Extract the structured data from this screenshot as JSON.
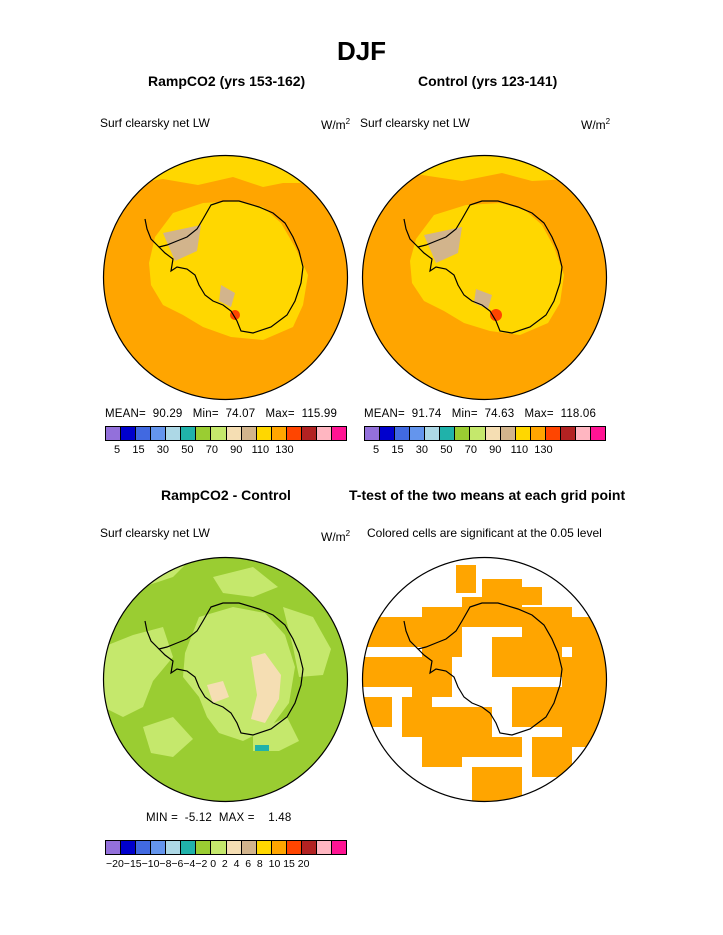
{
  "page": {
    "title": "DJF"
  },
  "panels": {
    "p1": {
      "title": "RampCO2 (yrs 153-162)",
      "variable": "Surf clearsky net LW",
      "units": "W/m",
      "units_sup": "2",
      "mean_label": "MEAN=",
      "mean": "90.29",
      "min_label": "Min=",
      "min": "74.07",
      "max_label": "Max=",
      "max": "115.99"
    },
    "p2": {
      "title": "Control (yrs 123-141)",
      "variable": "Surf clearsky net LW",
      "units": "W/m",
      "units_sup": "2",
      "mean_label": "MEAN=",
      "mean": "91.74",
      "min_label": "Min=",
      "min": "74.63",
      "max_label": "Max=",
      "max": "118.06"
    },
    "p3": {
      "title": "RampCO2 - Control",
      "variable": "Surf clearsky net LW",
      "units": "W/m",
      "units_sup": "2",
      "min_label": "MIN =",
      "min": "-5.12",
      "max_label": "MAX =",
      "max": "1.48"
    },
    "p4": {
      "title": "T-test of the two means at each grid point",
      "note": "Colored cells are significant at the 0.05 level"
    }
  },
  "colorbars": {
    "abs": {
      "colors": [
        "#9370db",
        "#0000cd",
        "#4169e1",
        "#6495ed",
        "#add8e6",
        "#20b2aa",
        "#9acd32",
        "#c5e86c",
        "#f5deb3",
        "#d2b48c",
        "#ffd700",
        "#ffa500",
        "#ff4500",
        "#b22222",
        "#ffb6c1",
        "#ff1493"
      ],
      "ticks": "5    15    30    50    70    90   110  130"
    },
    "diff": {
      "colors": [
        "#9370db",
        "#0000cd",
        "#4169e1",
        "#6495ed",
        "#add8e6",
        "#20b2aa",
        "#9acd32",
        "#c5e86c",
        "#f5deb3",
        "#d2b48c",
        "#ffd700",
        "#ffa500",
        "#ff4500",
        "#b22222",
        "#ffb6c1",
        "#ff1493"
      ],
      "ticks": "−20−15−10−8−6−4−2 0  2  4  6  8  10 15 20"
    }
  },
  "map_colors": {
    "orange": "#ffa500",
    "yellow": "#ffd700",
    "tan": "#d2b48c",
    "red": "#ff4500",
    "green_dark": "#9acd32",
    "green_light": "#c5e86c",
    "wheat": "#f5deb3",
    "teal": "#20b2aa"
  }
}
